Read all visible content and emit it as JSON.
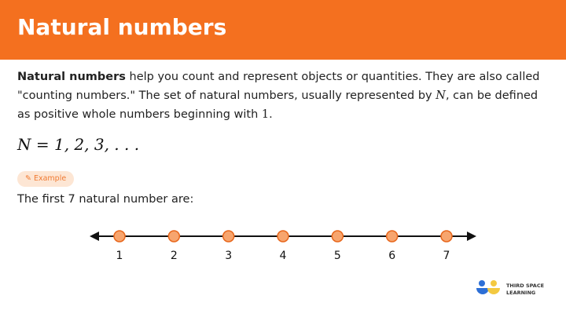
{
  "header": {
    "title": "Natural numbers"
  },
  "intro": {
    "bold": "Natural numbers",
    "text1": " help you count and represent objects or quantities. They are also called \"counting numbers.\" The set of natural numbers, usually represented by ",
    "sym": "N",
    "text2": ", can be defined as positive whole numbers beginning with ",
    "one": "1",
    "end": "."
  },
  "formula": "N = 1, 2, 3, . . .",
  "example": {
    "badge": "Example",
    "icon": "pencil-icon",
    "lead": "The first 7 natural number are:"
  },
  "number_line": {
    "values": [
      1,
      2,
      3,
      4,
      5,
      6,
      7
    ],
    "point_color": "#f7a56e"
  },
  "logo": {
    "line1": "THIRD SPACE",
    "line2": "LEARNING"
  }
}
